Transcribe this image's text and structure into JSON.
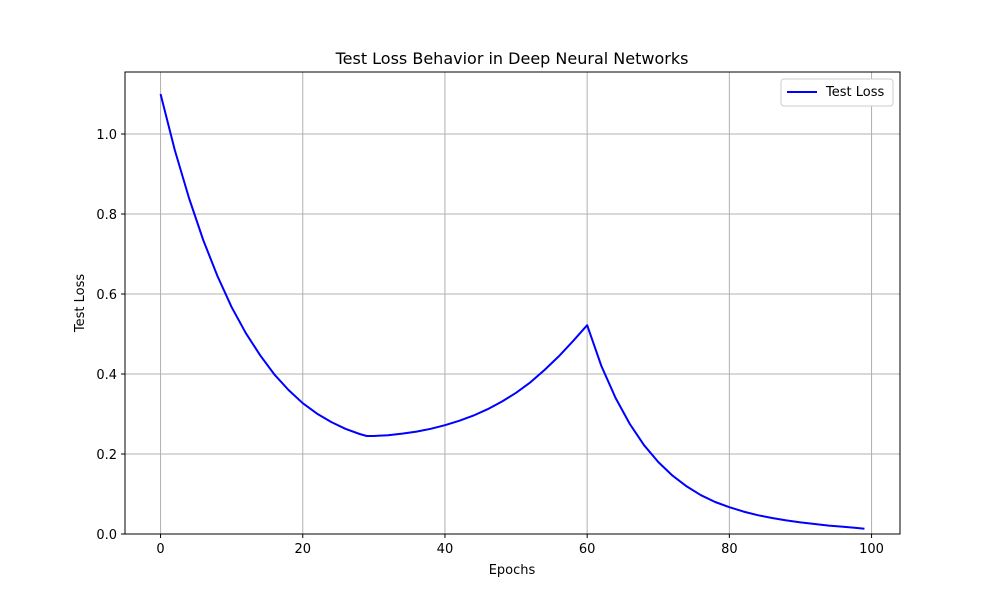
{
  "chart_data": {
    "type": "line",
    "title": "Test Loss Behavior in Deep Neural Networks",
    "xlabel": "Epochs",
    "ylabel": "Test Loss",
    "xlim": [
      -5,
      104
    ],
    "ylim": [
      0,
      1.155
    ],
    "x_ticks": [
      0,
      20,
      40,
      60,
      80,
      100
    ],
    "y_ticks": [
      0.0,
      0.2,
      0.4,
      0.6,
      0.8,
      1.0
    ],
    "x_tick_labels": [
      "0",
      "20",
      "40",
      "60",
      "80",
      "100"
    ],
    "y_tick_labels": [
      "0.0",
      "0.2",
      "0.4",
      "0.6",
      "0.8",
      "1.0"
    ],
    "grid": true,
    "legend_position": "top-right",
    "series": [
      {
        "name": "Test Loss",
        "color": "#0000ff",
        "x": [
          0,
          2,
          4,
          6,
          8,
          10,
          12,
          14,
          16,
          18,
          20,
          22,
          24,
          26,
          28,
          29,
          30,
          32,
          34,
          36,
          38,
          40,
          42,
          44,
          46,
          48,
          50,
          52,
          54,
          56,
          58,
          60,
          62,
          64,
          66,
          68,
          70,
          72,
          74,
          76,
          78,
          80,
          82,
          84,
          86,
          88,
          90,
          92,
          94,
          96,
          98,
          99
        ],
        "values": [
          1.1,
          0.96,
          0.84,
          0.735,
          0.645,
          0.567,
          0.502,
          0.447,
          0.399,
          0.36,
          0.327,
          0.301,
          0.28,
          0.263,
          0.25,
          0.245,
          0.245,
          0.247,
          0.251,
          0.256,
          0.263,
          0.272,
          0.283,
          0.296,
          0.312,
          0.331,
          0.353,
          0.379,
          0.41,
          0.444,
          0.482,
          0.522,
          0.42,
          0.34,
          0.275,
          0.222,
          0.18,
          0.146,
          0.119,
          0.097,
          0.08,
          0.067,
          0.056,
          0.047,
          0.04,
          0.034,
          0.029,
          0.025,
          0.021,
          0.018,
          0.015,
          0.013
        ]
      }
    ]
  }
}
